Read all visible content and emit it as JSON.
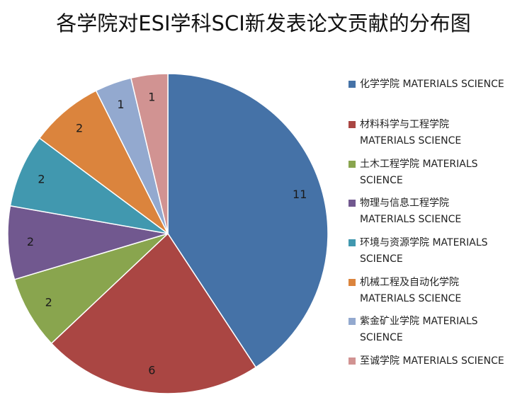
{
  "chart_data": {
    "type": "pie",
    "title": "各学院对ESI学科SCI新发表论文贡献的分布图",
    "legend_position": "right",
    "slices": [
      {
        "label": "化学学院 MATERIALS SCIENCE",
        "value": 11,
        "color": "#4572A7"
      },
      {
        "label": "材料科学与工程学院 MATERIALS SCIENCE",
        "value": 6,
        "color": "#AA4643"
      },
      {
        "label": "土木工程学院 MATERIALS SCIENCE",
        "value": 2,
        "color": "#89A54E"
      },
      {
        "label": "物理与信息工程学院 MATERIALS SCIENCE",
        "value": 2,
        "color": "#71588F"
      },
      {
        "label": "环境与资源学院 MATERIALS SCIENCE",
        "value": 2,
        "color": "#4198AF"
      },
      {
        "label": "机械工程及自动化学院 MATERIALS SCIENCE",
        "value": 2,
        "color": "#DB843D"
      },
      {
        "label": "紫金矿业学院 MATERIALS SCIENCE",
        "value": 1,
        "color": "#93A9CF"
      },
      {
        "label": "至诚学院 MATERIALS SCIENCE",
        "value": 1,
        "color": "#D19392"
      }
    ],
    "legend_lines": [
      [
        "化学学院 MATERIALS SCIENCE"
      ],
      [
        "材料科学与工程学院",
        "MATERIALS SCIENCE"
      ],
      [
        "土木工程学院 MATERIALS",
        "SCIENCE"
      ],
      [
        "物理与信息工程学院",
        "MATERIALS SCIENCE"
      ],
      [
        "环境与资源学院 MATERIALS",
        "SCIENCE"
      ],
      [
        "机械工程及自动化学院",
        "MATERIALS SCIENCE"
      ],
      [
        "紫金矿业学院 MATERIALS",
        "SCIENCE"
      ],
      [
        "至诚学院 MATERIALS SCIENCE"
      ]
    ]
  }
}
